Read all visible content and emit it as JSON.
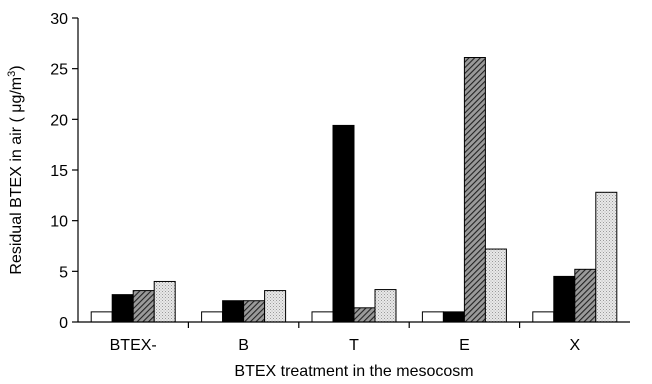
{
  "chart_data": {
    "type": "bar",
    "xlabel": "BTEX treatment in the mesocosm",
    "ylabel": {
      "prefix": "Residual BTEX in air ( ",
      "mu": "μ",
      "unit": "g/m",
      "sup": "3",
      "suffix": ")"
    },
    "ylim": [
      0,
      30
    ],
    "yticks": [
      "0",
      "5",
      "10",
      "15",
      "20",
      "25",
      "30"
    ],
    "categories": [
      "BTEX-",
      "B",
      "T",
      "E",
      "X"
    ],
    "grid": false,
    "legend": "none",
    "series": [
      {
        "values": [
          1.0,
          1.0,
          1.0,
          1.0,
          1.0
        ],
        "fill": "white"
      },
      {
        "values": [
          2.7,
          2.1,
          19.4,
          1.0,
          4.5
        ],
        "fill": "black"
      },
      {
        "values": [
          3.1,
          2.1,
          1.4,
          26.1,
          5.2
        ],
        "fill": "hatch-dark"
      },
      {
        "values": [
          4.0,
          3.1,
          3.2,
          7.2,
          12.8
        ],
        "fill": "stipple-light"
      }
    ],
    "colors": {
      "white": "#ffffff",
      "black": "#000000",
      "hatch_dark": "#555555",
      "stipple_light": "#d6d6d6",
      "outline": "#000000"
    }
  }
}
